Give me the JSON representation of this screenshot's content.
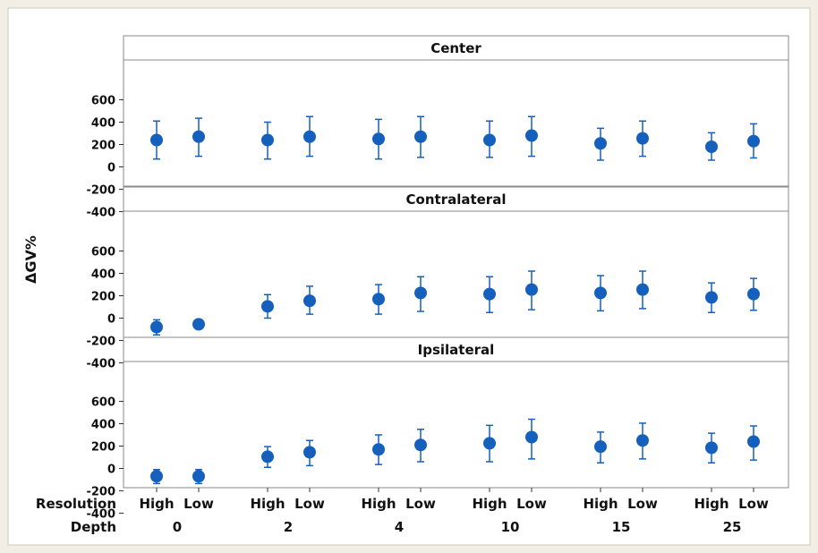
{
  "chart_data": {
    "type": "scatter",
    "ylabel": "ΔGV%",
    "y_ticks": [
      "600",
      "400",
      "200",
      "0",
      "-200",
      "-400"
    ],
    "ylim": [
      -500,
      650
    ],
    "row_labels": [
      "Resolution",
      "Depth"
    ],
    "resolution_labels": [
      "High",
      "Low"
    ],
    "depths": [
      "0",
      "2",
      "4",
      "10",
      "15",
      "25"
    ],
    "marker_color": "#1560bd",
    "panels": [
      {
        "title": "Center",
        "means": [
          240,
          270,
          240,
          270,
          250,
          270,
          240,
          280,
          210,
          255,
          180,
          230
        ],
        "lower": [
          70,
          95,
          70,
          95,
          70,
          85,
          85,
          95,
          60,
          95,
          60,
          80
        ],
        "upper": [
          410,
          435,
          400,
          450,
          425,
          450,
          410,
          450,
          345,
          410,
          305,
          385
        ]
      },
      {
        "title": "Contralateral",
        "means": [
          -80,
          -55,
          105,
          155,
          170,
          225,
          215,
          255,
          225,
          255,
          185,
          215
        ],
        "lower": [
          -150,
          -55,
          0,
          35,
          35,
          60,
          50,
          75,
          65,
          85,
          50,
          70
        ],
        "upper": [
          -15,
          -55,
          210,
          285,
          300,
          370,
          370,
          420,
          380,
          420,
          315,
          355
        ]
      },
      {
        "title": "Ipsilateral",
        "means": [
          -70,
          -70,
          105,
          145,
          170,
          210,
          225,
          280,
          195,
          250,
          185,
          240
        ],
        "lower": [
          -135,
          -135,
          10,
          25,
          35,
          60,
          60,
          85,
          50,
          85,
          50,
          75
        ],
        "upper": [
          -10,
          -10,
          195,
          250,
          300,
          350,
          385,
          440,
          325,
          405,
          315,
          380
        ]
      }
    ]
  }
}
